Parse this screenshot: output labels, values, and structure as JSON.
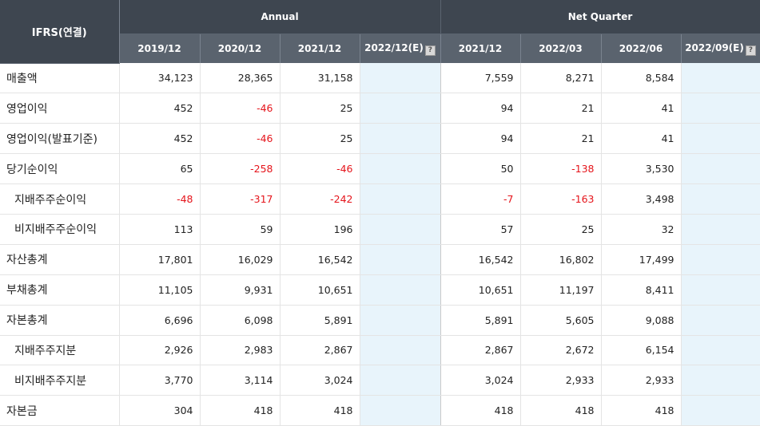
{
  "table": {
    "corner_label": "IFRS(연결)",
    "groups": [
      {
        "label": "Annual"
      },
      {
        "label": "Net Quarter"
      }
    ],
    "columns": [
      {
        "label": "2019/12",
        "estimate": false
      },
      {
        "label": "2020/12",
        "estimate": false
      },
      {
        "label": "2021/12",
        "estimate": false
      },
      {
        "label": "2022/12(E)",
        "estimate": true
      },
      {
        "label": "2021/12",
        "estimate": false
      },
      {
        "label": "2022/03",
        "estimate": false
      },
      {
        "label": "2022/06",
        "estimate": false
      },
      {
        "label": "2022/09(E)",
        "estimate": true
      }
    ],
    "help_icon": "question-mark-icon",
    "negative_color": "#e5141b",
    "estimate_bg": "#e8f4fb",
    "header_bg": "#3e4650",
    "rows": [
      {
        "label": "매출액",
        "indent": false,
        "values": [
          "34,123",
          "28,365",
          "31,158",
          "",
          "7,559",
          "8,271",
          "8,584",
          ""
        ]
      },
      {
        "label": "영업이익",
        "indent": false,
        "values": [
          "452",
          "-46",
          "25",
          "",
          "94",
          "21",
          "41",
          ""
        ]
      },
      {
        "label": "영업이익(발표기준)",
        "indent": false,
        "values": [
          "452",
          "-46",
          "25",
          "",
          "94",
          "21",
          "41",
          ""
        ]
      },
      {
        "label": "당기순이익",
        "indent": false,
        "values": [
          "65",
          "-258",
          "-46",
          "",
          "50",
          "-138",
          "3,530",
          ""
        ]
      },
      {
        "label": "지배주주순이익",
        "indent": true,
        "values": [
          "-48",
          "-317",
          "-242",
          "",
          "-7",
          "-163",
          "3,498",
          ""
        ]
      },
      {
        "label": "비지배주주순이익",
        "indent": true,
        "values": [
          "113",
          "59",
          "196",
          "",
          "57",
          "25",
          "32",
          ""
        ]
      },
      {
        "label": "자산총계",
        "indent": false,
        "values": [
          "17,801",
          "16,029",
          "16,542",
          "",
          "16,542",
          "16,802",
          "17,499",
          ""
        ]
      },
      {
        "label": "부채총계",
        "indent": false,
        "values": [
          "11,105",
          "9,931",
          "10,651",
          "",
          "10,651",
          "11,197",
          "8,411",
          ""
        ]
      },
      {
        "label": "자본총계",
        "indent": false,
        "values": [
          "6,696",
          "6,098",
          "5,891",
          "",
          "5,891",
          "5,605",
          "9,088",
          ""
        ]
      },
      {
        "label": "지배주주지분",
        "indent": true,
        "values": [
          "2,926",
          "2,983",
          "2,867",
          "",
          "2,867",
          "2,672",
          "6,154",
          ""
        ]
      },
      {
        "label": "비지배주주지분",
        "indent": true,
        "values": [
          "3,770",
          "3,114",
          "3,024",
          "",
          "3,024",
          "2,933",
          "2,933",
          ""
        ]
      },
      {
        "label": "자본금",
        "indent": false,
        "values": [
          "304",
          "418",
          "418",
          "",
          "418",
          "418",
          "418",
          ""
        ]
      }
    ]
  }
}
